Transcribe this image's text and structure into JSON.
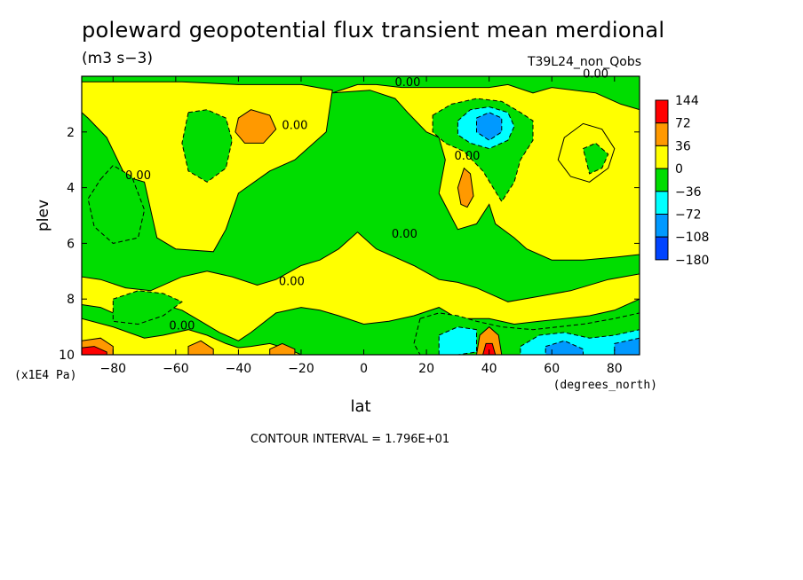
{
  "chart_data": {
    "type": "heatmap",
    "title": "poleward geopotential flux transient mean merdional",
    "units": "(m3 s−3)",
    "run_label": "T39L24_non_Qobs",
    "xlabel": "lat",
    "xunits": "(degrees_north)",
    "ylabel": "plev",
    "yunits": "(x1E4 Pa)",
    "xlim": [
      -90,
      88
    ],
    "ylim": [
      10,
      0
    ],
    "x_ticks": [
      -80,
      -60,
      -40,
      -20,
      0,
      20,
      40,
      60,
      80
    ],
    "x_tick_labels": [
      "−80",
      "−60",
      "−40",
      "−20",
      "0",
      "20",
      "40",
      "60",
      "80"
    ],
    "y_ticks": [
      2,
      4,
      6,
      8,
      10
    ],
    "y_tick_labels": [
      "2",
      "4",
      "6",
      "8",
      "10"
    ],
    "contour_label": "0.00",
    "contour_interval": "CONTOUR INTERVAL = 1.796E+01",
    "legend": {
      "placement": "right",
      "labels": [
        "144",
        "72",
        "36",
        "0",
        "−36",
        "−72",
        "−108",
        "−180"
      ],
      "colors": [
        "#ff0000",
        "#ff9900",
        "#ffff00",
        "#00dd00",
        "#00ffff",
        "#0099ff",
        "#0044ff"
      ]
    },
    "regions": [
      {
        "name": "positive-south-midlat",
        "level": 36,
        "color": "#ffff00",
        "points": [
          [
            -90,
            0.2
          ],
          [
            -58,
            0.2
          ],
          [
            -40,
            0.3
          ],
          [
            -20,
            0.3
          ],
          [
            -10,
            0.5
          ],
          [
            -12,
            2
          ],
          [
            -22,
            3
          ],
          [
            -30,
            3.4
          ],
          [
            -40,
            4.2
          ],
          [
            -44,
            5.5
          ],
          [
            -48,
            6.3
          ],
          [
            -60,
            6.2
          ],
          [
            -66,
            5.8
          ],
          [
            -70,
            3.8
          ],
          [
            -76,
            3.6
          ],
          [
            -82,
            2.2
          ],
          [
            -88,
            1.5
          ],
          [
            -90,
            1.3
          ]
        ]
      },
      {
        "name": "positive-upper-center",
        "level": 36,
        "color": "#ffff00",
        "points": [
          [
            -10,
            0.6
          ],
          [
            2,
            0.5
          ],
          [
            10,
            0.8
          ],
          [
            14,
            1.3
          ],
          [
            20,
            2
          ],
          [
            24,
            2.2
          ],
          [
            26,
            3
          ],
          [
            24,
            4.2
          ],
          [
            30,
            5.5
          ],
          [
            36,
            5.3
          ],
          [
            40,
            4.6
          ],
          [
            42,
            5.3
          ],
          [
            48,
            5.8
          ],
          [
            52,
            6.2
          ],
          [
            60,
            6.6
          ],
          [
            70,
            6.6
          ],
          [
            80,
            6.5
          ],
          [
            88,
            6.4
          ],
          [
            88,
            1.2
          ],
          [
            82,
            1
          ],
          [
            74,
            0.6
          ],
          [
            60,
            0.4
          ],
          [
            54,
            0.6
          ],
          [
            46,
            0.3
          ],
          [
            40,
            0.4
          ],
          [
            32,
            0.4
          ],
          [
            24,
            0.4
          ],
          [
            12,
            0.4
          ],
          [
            4,
            0.3
          ],
          [
            -2,
            0.3
          ]
        ]
      },
      {
        "name": "positive-lower-center",
        "level": 36,
        "color": "#ffff00",
        "points": [
          [
            -2,
            5.6
          ],
          [
            4,
            6.2
          ],
          [
            10,
            6.5
          ],
          [
            16,
            6.8
          ],
          [
            24,
            7.3
          ],
          [
            30,
            7.4
          ],
          [
            36,
            7.6
          ],
          [
            46,
            8.1
          ],
          [
            56,
            7.9
          ],
          [
            66,
            7.7
          ],
          [
            78,
            7.3
          ],
          [
            88,
            7.1
          ],
          [
            88,
            8.0
          ],
          [
            80,
            8.4
          ],
          [
            72,
            8.6
          ],
          [
            64,
            8.7
          ],
          [
            56,
            8.8
          ],
          [
            48,
            8.9
          ],
          [
            40,
            8.7
          ],
          [
            30,
            8.7
          ],
          [
            24,
            8.3
          ],
          [
            16,
            8.6
          ],
          [
            8,
            8.8
          ],
          [
            0,
            8.9
          ],
          [
            -8,
            8.6
          ],
          [
            -14,
            8.4
          ],
          [
            -20,
            8.3
          ],
          [
            -28,
            8.5
          ],
          [
            -36,
            9.2
          ],
          [
            -40,
            9.5
          ],
          [
            -46,
            9.2
          ],
          [
            -52,
            8.8
          ],
          [
            -58,
            8.4
          ],
          [
            -64,
            8.2
          ],
          [
            -70,
            8.5
          ],
          [
            -76,
            8.7
          ],
          [
            -84,
            8.3
          ],
          [
            -90,
            8.2
          ],
          [
            -90,
            7.2
          ],
          [
            -84,
            7.3
          ],
          [
            -76,
            7.6
          ],
          [
            -68,
            7.7
          ],
          [
            -58,
            7.2
          ],
          [
            -50,
            7.0
          ],
          [
            -42,
            7.2
          ],
          [
            -34,
            7.5
          ],
          [
            -28,
            7.3
          ],
          [
            -20,
            6.8
          ],
          [
            -14,
            6.6
          ],
          [
            -8,
            6.2
          ]
        ]
      },
      {
        "name": "positive-south-surface",
        "level": 36,
        "color": "#ffff00",
        "points": [
          [
            -90,
            8.7
          ],
          [
            -80,
            9.0
          ],
          [
            -70,
            9.4
          ],
          [
            -64,
            9.3
          ],
          [
            -56,
            9.1
          ],
          [
            -50,
            9.3
          ],
          [
            -44,
            9.6
          ],
          [
            -40,
            9.75
          ],
          [
            -36,
            9.7
          ],
          [
            -30,
            9.6
          ],
          [
            -24,
            9.8
          ],
          [
            -20,
            10
          ],
          [
            -90,
            10
          ]
        ]
      },
      {
        "name": "positive-70N-upper",
        "level": 36,
        "color": "#ffff00",
        "points": [
          [
            64,
            2.2
          ],
          [
            70,
            1.7
          ],
          [
            76,
            1.9
          ],
          [
            80,
            2.6
          ],
          [
            78,
            3.3
          ],
          [
            72,
            3.8
          ],
          [
            66,
            3.6
          ],
          [
            62,
            3.0
          ]
        ]
      },
      {
        "name": "negative-south-mid",
        "level": -36,
        "color": "#00dd00",
        "points": [
          [
            -56,
            1.3
          ],
          [
            -50,
            1.2
          ],
          [
            -44,
            1.5
          ],
          [
            -42,
            2.3
          ],
          [
            -44,
            3.3
          ],
          [
            -50,
            3.8
          ],
          [
            -56,
            3.4
          ],
          [
            -58,
            2.4
          ]
        ]
      },
      {
        "name": "negative-south-upper",
        "level": -36,
        "color": "#00dd00",
        "points": [
          [
            -84,
            3.7
          ],
          [
            -80,
            3.2
          ],
          [
            -74,
            3.6
          ],
          [
            -70,
            4.8
          ],
          [
            -72,
            5.8
          ],
          [
            -80,
            6.0
          ],
          [
            -86,
            5.4
          ],
          [
            -88,
            4.4
          ]
        ]
      },
      {
        "name": "negative-north-midlat",
        "level": -36,
        "color": "#00dd00",
        "points": [
          [
            22,
            1.4
          ],
          [
            28,
            1.0
          ],
          [
            36,
            0.8
          ],
          [
            44,
            0.9
          ],
          [
            50,
            1.3
          ],
          [
            54,
            1.6
          ],
          [
            54,
            2.3
          ],
          [
            50,
            3.0
          ],
          [
            48,
            3.8
          ],
          [
            44,
            4.5
          ],
          [
            38,
            3.4
          ],
          [
            32,
            2.7
          ],
          [
            26,
            2.4
          ],
          [
            22,
            2.0
          ]
        ]
      },
      {
        "name": "negative-70N",
        "level": -36,
        "color": "#00dd00",
        "points": [
          [
            70,
            2.6
          ],
          [
            74,
            2.4
          ],
          [
            78,
            2.8
          ],
          [
            76,
            3.3
          ],
          [
            72,
            3.5
          ]
        ]
      },
      {
        "name": "negative-south-low",
        "level": -36,
        "color": "#00dd00",
        "points": [
          [
            -80,
            8.0
          ],
          [
            -72,
            7.7
          ],
          [
            -64,
            7.8
          ],
          [
            -58,
            8.1
          ],
          [
            -64,
            8.6
          ],
          [
            -72,
            8.9
          ],
          [
            -80,
            8.8
          ]
        ]
      },
      {
        "name": "negative-north-low",
        "level": -36,
        "color": "#00dd00",
        "points": [
          [
            18,
            8.7
          ],
          [
            24,
            8.5
          ],
          [
            30,
            8.6
          ],
          [
            36,
            8.8
          ],
          [
            44,
            9.0
          ],
          [
            54,
            9.1
          ],
          [
            62,
            9.0
          ],
          [
            70,
            8.9
          ],
          [
            80,
            8.7
          ],
          [
            88,
            8.5
          ],
          [
            88,
            10
          ],
          [
            18,
            10
          ],
          [
            16,
            9.6
          ]
        ]
      },
      {
        "name": "cyan-north-upper",
        "level": -72,
        "color": "#00ffff",
        "points": [
          [
            30,
            1.6
          ],
          [
            34,
            1.2
          ],
          [
            40,
            1.1
          ],
          [
            46,
            1.3
          ],
          [
            48,
            1.8
          ],
          [
            46,
            2.3
          ],
          [
            40,
            2.6
          ],
          [
            34,
            2.4
          ],
          [
            30,
            2.1
          ]
        ]
      },
      {
        "name": "blue-north-upper",
        "level": -108,
        "color": "#0099ff",
        "points": [
          [
            36,
            1.5
          ],
          [
            40,
            1.3
          ],
          [
            44,
            1.5
          ],
          [
            44,
            2.0
          ],
          [
            40,
            2.3
          ],
          [
            36,
            2.0
          ]
        ]
      },
      {
        "name": "cyan-north-low-1",
        "level": -72,
        "color": "#00ffff",
        "points": [
          [
            24,
            9.3
          ],
          [
            30,
            9.0
          ],
          [
            36,
            9.1
          ],
          [
            36,
            9.9
          ],
          [
            30,
            10
          ],
          [
            24,
            10
          ]
        ]
      },
      {
        "name": "cyan-north-low-2",
        "level": -72,
        "color": "#00ffff",
        "points": [
          [
            50,
            9.7
          ],
          [
            56,
            9.3
          ],
          [
            64,
            9.2
          ],
          [
            72,
            9.4
          ],
          [
            80,
            9.3
          ],
          [
            88,
            9.1
          ],
          [
            88,
            10
          ],
          [
            50,
            10
          ]
        ]
      },
      {
        "name": "blue-north-low",
        "level": -108,
        "color": "#0099ff",
        "points": [
          [
            58,
            9.7
          ],
          [
            64,
            9.5
          ],
          [
            70,
            9.8
          ],
          [
            70,
            10
          ],
          [
            58,
            10
          ]
        ]
      },
      {
        "name": "blue-north-low-2",
        "level": -108,
        "color": "#0099ff",
        "points": [
          [
            80,
            9.6
          ],
          [
            88,
            9.4
          ],
          [
            88,
            10
          ],
          [
            80,
            10
          ]
        ]
      },
      {
        "name": "orange-south-upper",
        "level": 72,
        "color": "#ff9900",
        "points": [
          [
            -40,
            1.5
          ],
          [
            -36,
            1.2
          ],
          [
            -30,
            1.4
          ],
          [
            -28,
            1.9
          ],
          [
            -32,
            2.4
          ],
          [
            -38,
            2.4
          ],
          [
            -41,
            2.0
          ]
        ]
      },
      {
        "name": "orange-north-mid",
        "level": 72,
        "color": "#ff9900",
        "points": [
          [
            30,
            4.0
          ],
          [
            32,
            3.3
          ],
          [
            34,
            3.5
          ],
          [
            35,
            4.3
          ],
          [
            33,
            4.7
          ],
          [
            31,
            4.6
          ]
        ]
      },
      {
        "name": "orange-south-surface",
        "level": 72,
        "color": "#ff9900",
        "points": [
          [
            -90,
            9.5
          ],
          [
            -84,
            9.4
          ],
          [
            -80,
            9.7
          ],
          [
            -80,
            10
          ],
          [
            -90,
            10
          ]
        ]
      },
      {
        "name": "orange-south-surface-2",
        "level": 72,
        "color": "#ff9900",
        "points": [
          [
            -56,
            9.7
          ],
          [
            -52,
            9.5
          ],
          [
            -48,
            9.8
          ],
          [
            -48,
            10
          ],
          [
            -56,
            10
          ]
        ]
      },
      {
        "name": "orange-south-surface-3",
        "level": 72,
        "color": "#ff9900",
        "points": [
          [
            -30,
            9.8
          ],
          [
            -26,
            9.6
          ],
          [
            -22,
            9.8
          ],
          [
            -22,
            10
          ],
          [
            -30,
            10
          ]
        ]
      },
      {
        "name": "orange-north-surface",
        "level": 72,
        "color": "#ff9900",
        "points": [
          [
            36,
            10
          ],
          [
            37,
            9.3
          ],
          [
            40,
            9.0
          ],
          [
            43,
            9.3
          ],
          [
            44,
            10
          ]
        ]
      },
      {
        "name": "red-south-surface",
        "level": 144,
        "color": "#ff0000",
        "points": [
          [
            -90,
            9.75
          ],
          [
            -86,
            9.7
          ],
          [
            -82,
            9.9
          ],
          [
            -82,
            10
          ],
          [
            -90,
            10
          ]
        ]
      },
      {
        "name": "red-north-surface",
        "level": 144,
        "color": "#ff0000",
        "points": [
          [
            38,
            10
          ],
          [
            39,
            9.6
          ],
          [
            41,
            9.6
          ],
          [
            42,
            10
          ]
        ]
      }
    ],
    "zero_labels": [
      {
        "lat": 14,
        "plev": 0.35
      },
      {
        "lat": 74,
        "plev": 0.05
      },
      {
        "lat": -22,
        "plev": 1.9
      },
      {
        "lat": -72,
        "plev": 3.7
      },
      {
        "lat": 33,
        "plev": 3.0
      },
      {
        "lat": 13,
        "plev": 5.8
      },
      {
        "lat": -23,
        "plev": 7.5
      },
      {
        "lat": -58,
        "plev": 9.1
      }
    ]
  }
}
